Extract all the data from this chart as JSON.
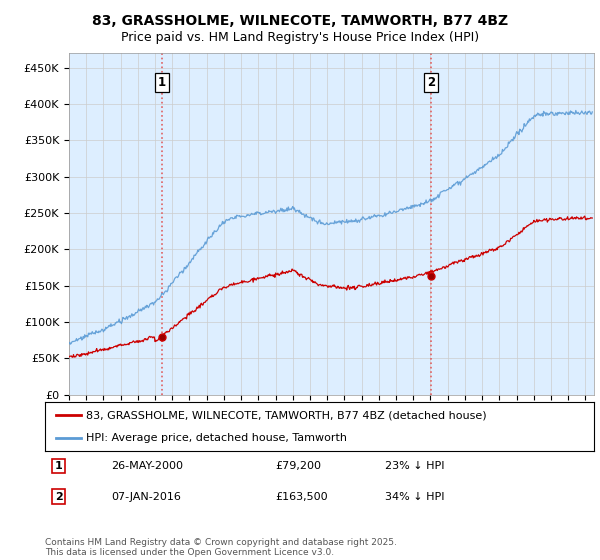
{
  "title": "83, GRASSHOLME, WILNECOTE, TAMWORTH, B77 4BZ",
  "subtitle": "Price paid vs. HM Land Registry's House Price Index (HPI)",
  "hpi_label": "HPI: Average price, detached house, Tamworth",
  "price_label": "83, GRASSHOLME, WILNECOTE, TAMWORTH, B77 4BZ (detached house)",
  "annotation1_label": "1",
  "annotation1_date": "26-MAY-2000",
  "annotation1_price": "£79,200",
  "annotation1_pct": "23% ↓ HPI",
  "annotation1_year": 2000.4,
  "annotation1_value": 79200,
  "annotation2_label": "2",
  "annotation2_date": "07-JAN-2016",
  "annotation2_price": "£163,500",
  "annotation2_pct": "34% ↓ HPI",
  "annotation2_year": 2016.03,
  "annotation2_value": 163500,
  "ylim": [
    0,
    470000
  ],
  "xlim_start": 1995.0,
  "xlim_end": 2025.5,
  "ytick_step": 50000,
  "footer": "Contains HM Land Registry data © Crown copyright and database right 2025.\nThis data is licensed under the Open Government Licence v3.0.",
  "hpi_color": "#5b9bd5",
  "price_color": "#cc0000",
  "vline_color": "#e06060",
  "grid_color": "#cccccc",
  "bg_color": "#ffffff",
  "plot_bg_color": "#ddeeff",
  "title_fontsize": 10,
  "subtitle_fontsize": 9,
  "axis_fontsize": 8,
  "legend_fontsize": 8,
  "footer_fontsize": 6.5
}
